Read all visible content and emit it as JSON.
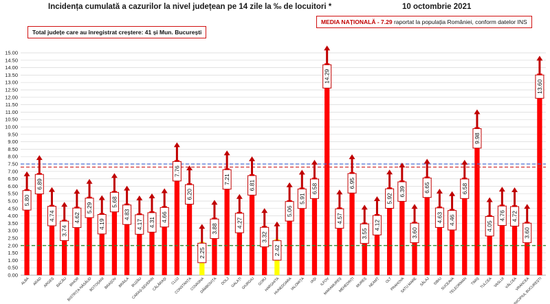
{
  "header": {
    "title": "Incidența cumulată a cazurilor la nivel județean pe 14 zile la ‰ de locuitori *",
    "date": "10 octombrie 2021"
  },
  "info_box": {
    "text": "Total județe care au înregistrat creștere:  41 și Mun. București"
  },
  "media_box": {
    "label": "MEDIA NAȚIONALĂ",
    "value": " - 7.29",
    "text": " raportat la populația României, conform datelor INS"
  },
  "colors": {
    "bar": "#ff0000",
    "bar_highlight": "#ffff00",
    "arrow": "#c00000",
    "label_border": "#c00000",
    "line_blue": "#4a6fd6",
    "line_red": "#d23030",
    "line_green": "#2e8b2e",
    "grid": "#d8d8d8"
  },
  "chart_data": {
    "type": "bar",
    "categories": [
      "ALBA",
      "ARAD",
      "ARGEȘ",
      "BACĂU",
      "BIHOR",
      "BISTRIȚA-NĂSĂUD",
      "BOTOȘANI",
      "BRAȘOV",
      "BRĂILA",
      "BUZĂU",
      "CARAȘ-SEVERIN",
      "CĂLĂRAȘI",
      "CLUJ",
      "CONSTANȚA",
      "COVASNA",
      "DÂMBOVIȚA",
      "DOLJ",
      "GALAȚI",
      "GIURGIU",
      "GORJ",
      "HARGHITA",
      "HUNEDOARA",
      "IALOMIȚA",
      "IAȘI",
      "ILFOV",
      "MARAMUREȘ",
      "MEHEDINȚI",
      "MUREȘ",
      "NEAMȚ",
      "OLT",
      "PRAHOVA",
      "SATU MARE",
      "SĂLAJ",
      "SIBIU",
      "SUCEAVA",
      "TELEORMAN",
      "TIMIȘ",
      "TULCEA",
      "VASLUI",
      "VÂLCEA",
      "VRANCEA",
      "MUNICIPIUL BUCUREȘTI"
    ],
    "values": [
      5.8,
      6.89,
      4.74,
      3.74,
      4.62,
      5.29,
      4.19,
      5.68,
      4.83,
      4.17,
      4.31,
      4.66,
      7.76,
      6.2,
      2.25,
      3.88,
      7.21,
      4.27,
      6.81,
      3.32,
      2.42,
      5.06,
      5.91,
      6.58,
      14.29,
      4.57,
      6.95,
      3.55,
      4.12,
      5.92,
      6.39,
      3.6,
      6.65,
      4.63,
      4.46,
      6.58,
      9.98,
      4.05,
      4.76,
      4.72,
      3.6,
      13.6
    ],
    "value_labels": [
      "5.80",
      "6.89",
      "4.74",
      "3.74",
      "4.62",
      "5.29",
      "4.19",
      "5.68",
      "4.83",
      "4.17",
      "4.31",
      "4.66",
      "7.76",
      "6.20",
      "2.25",
      "3.88",
      "7.21",
      "4.27",
      "6.81",
      "3.32",
      "2.42",
      "5.06",
      "5.91",
      "6.58",
      "14.29",
      "4.57",
      "6.95",
      "3.55",
      "4.12",
      "5.92",
      "6.39",
      "3.60",
      "6.65",
      "4.63",
      "4.46",
      "6.58",
      "9.98",
      "4.05",
      "4.76",
      "4.72",
      "3.60",
      "13.60"
    ],
    "trend": [
      "up",
      "up",
      "up",
      "up",
      "up",
      "up",
      "up",
      "up",
      "up",
      "up",
      "up",
      "up",
      "up",
      "up",
      "up",
      "up",
      "up",
      "up",
      "up",
      "up",
      "up",
      "up",
      "up",
      "up",
      "up",
      "up",
      "up",
      "up",
      "up",
      "up",
      "up",
      "up",
      "up",
      "up",
      "up",
      "up",
      "up",
      "up",
      "up",
      "up",
      "up",
      "up"
    ],
    "highlighted": [
      "COVASNA",
      "HARGHITA"
    ],
    "reference_lines": [
      {
        "value": 7.5,
        "style": "dashed",
        "color": "blue"
      },
      {
        "value": 7.29,
        "style": "dashed",
        "color": "red"
      },
      {
        "value": 2.0,
        "style": "dashed",
        "color": "green"
      }
    ],
    "y_ticks": [
      "0.00",
      "0.50",
      "1.00",
      "1.50",
      "2.00",
      "2.50",
      "3.00",
      "3.50",
      "4.00",
      "4.50",
      "5.00",
      "5.50",
      "6.00",
      "6.50",
      "7.00",
      "7.50",
      "8.00",
      "8.50",
      "9.00",
      "9.50",
      "10.00",
      "10.50",
      "11.00",
      "11.50",
      "12.00",
      "12.50",
      "13.00",
      "13.50",
      "14.00",
      "14.50",
      "15.00"
    ],
    "ylim": [
      0,
      15
    ],
    "grid": true,
    "title": "Incidența cumulată a cazurilor la nivel județean pe 14 zile la ‰ de locuitori *",
    "xlabel": "",
    "ylabel": ""
  }
}
